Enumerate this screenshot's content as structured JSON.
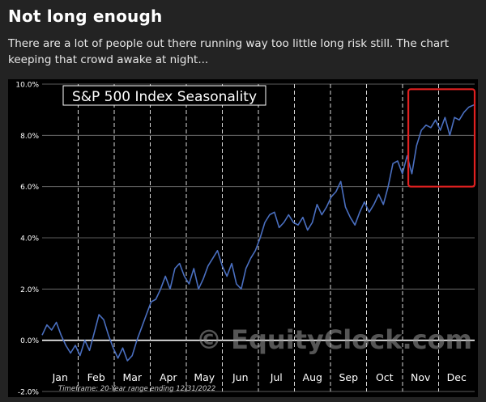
{
  "post": {
    "title": "Not long enough",
    "description": "There are a lot of people out there running way too little long risk still. The chart keeping that crowd awake at night..."
  },
  "chart_data": {
    "type": "line",
    "title": "S&P 500 Index Seasonality",
    "footnote": "Timeframe: 20-Year range ending 12/31/2022",
    "watermark": "© EquityClock.com",
    "categories": [
      "Jan",
      "Feb",
      "Mar",
      "Apr",
      "May",
      "Jun",
      "Jul",
      "Aug",
      "Sep",
      "Oct",
      "Nov",
      "Dec"
    ],
    "y_ticks": [
      "10.0%",
      "8.0%",
      "6.0%",
      "4.0%",
      "2.0%",
      "0.0%",
      "-2.0%"
    ],
    "ylim": [
      -2.0,
      10.0
    ],
    "xlim": [
      0,
      365
    ],
    "grid": true,
    "series": [
      {
        "color": "#4a6fc0",
        "x": [
          0,
          4,
          8,
          12,
          16,
          20,
          24,
          28,
          32,
          36,
          40,
          44,
          48,
          52,
          56,
          60,
          64,
          68,
          72,
          76,
          80,
          84,
          88,
          92,
          96,
          100,
          104,
          108,
          112,
          116,
          120,
          124,
          128,
          132,
          136,
          140,
          144,
          148,
          152,
          156,
          160,
          164,
          168,
          172,
          176,
          180,
          184,
          188,
          192,
          196,
          200,
          204,
          208,
          212,
          216,
          220,
          224,
          228,
          232,
          236,
          240,
          244,
          248,
          252,
          256,
          260,
          264,
          268,
          272,
          276,
          280,
          284,
          288,
          292,
          296,
          300,
          304,
          308,
          312,
          316,
          320,
          324,
          328,
          332,
          336,
          340,
          344,
          348,
          352,
          356,
          360,
          365
        ],
        "y": [
          0.2,
          0.6,
          0.4,
          0.7,
          0.2,
          -0.2,
          -0.5,
          -0.2,
          -0.6,
          0.0,
          -0.4,
          0.3,
          1.0,
          0.8,
          0.2,
          -0.3,
          -0.7,
          -0.3,
          -0.8,
          -0.6,
          0.0,
          0.5,
          1.0,
          1.5,
          1.6,
          2.0,
          2.5,
          2.0,
          2.8,
          3.0,
          2.5,
          2.2,
          2.8,
          2.0,
          2.4,
          2.9,
          3.2,
          3.5,
          2.9,
          2.5,
          3.0,
          2.2,
          2.0,
          2.8,
          3.2,
          3.5,
          4.0,
          4.6,
          4.9,
          5.0,
          4.4,
          4.6,
          4.9,
          4.6,
          4.5,
          4.8,
          4.3,
          4.6,
          5.3,
          4.9,
          5.2,
          5.6,
          5.8,
          6.2,
          5.2,
          4.8,
          4.5,
          5.0,
          5.4,
          5.0,
          5.3,
          5.7,
          5.3,
          6.0,
          6.9,
          7.0,
          6.5,
          7.2,
          6.5,
          7.6,
          8.2,
          8.4,
          8.3,
          8.6,
          8.2,
          8.7,
          8.0,
          8.7,
          8.6,
          8.9,
          9.1,
          9.2
        ]
      }
    ],
    "highlight": {
      "x0": 309,
      "x1": 365,
      "y0": 6.0,
      "y1": 9.8,
      "color": "#e02020"
    }
  }
}
